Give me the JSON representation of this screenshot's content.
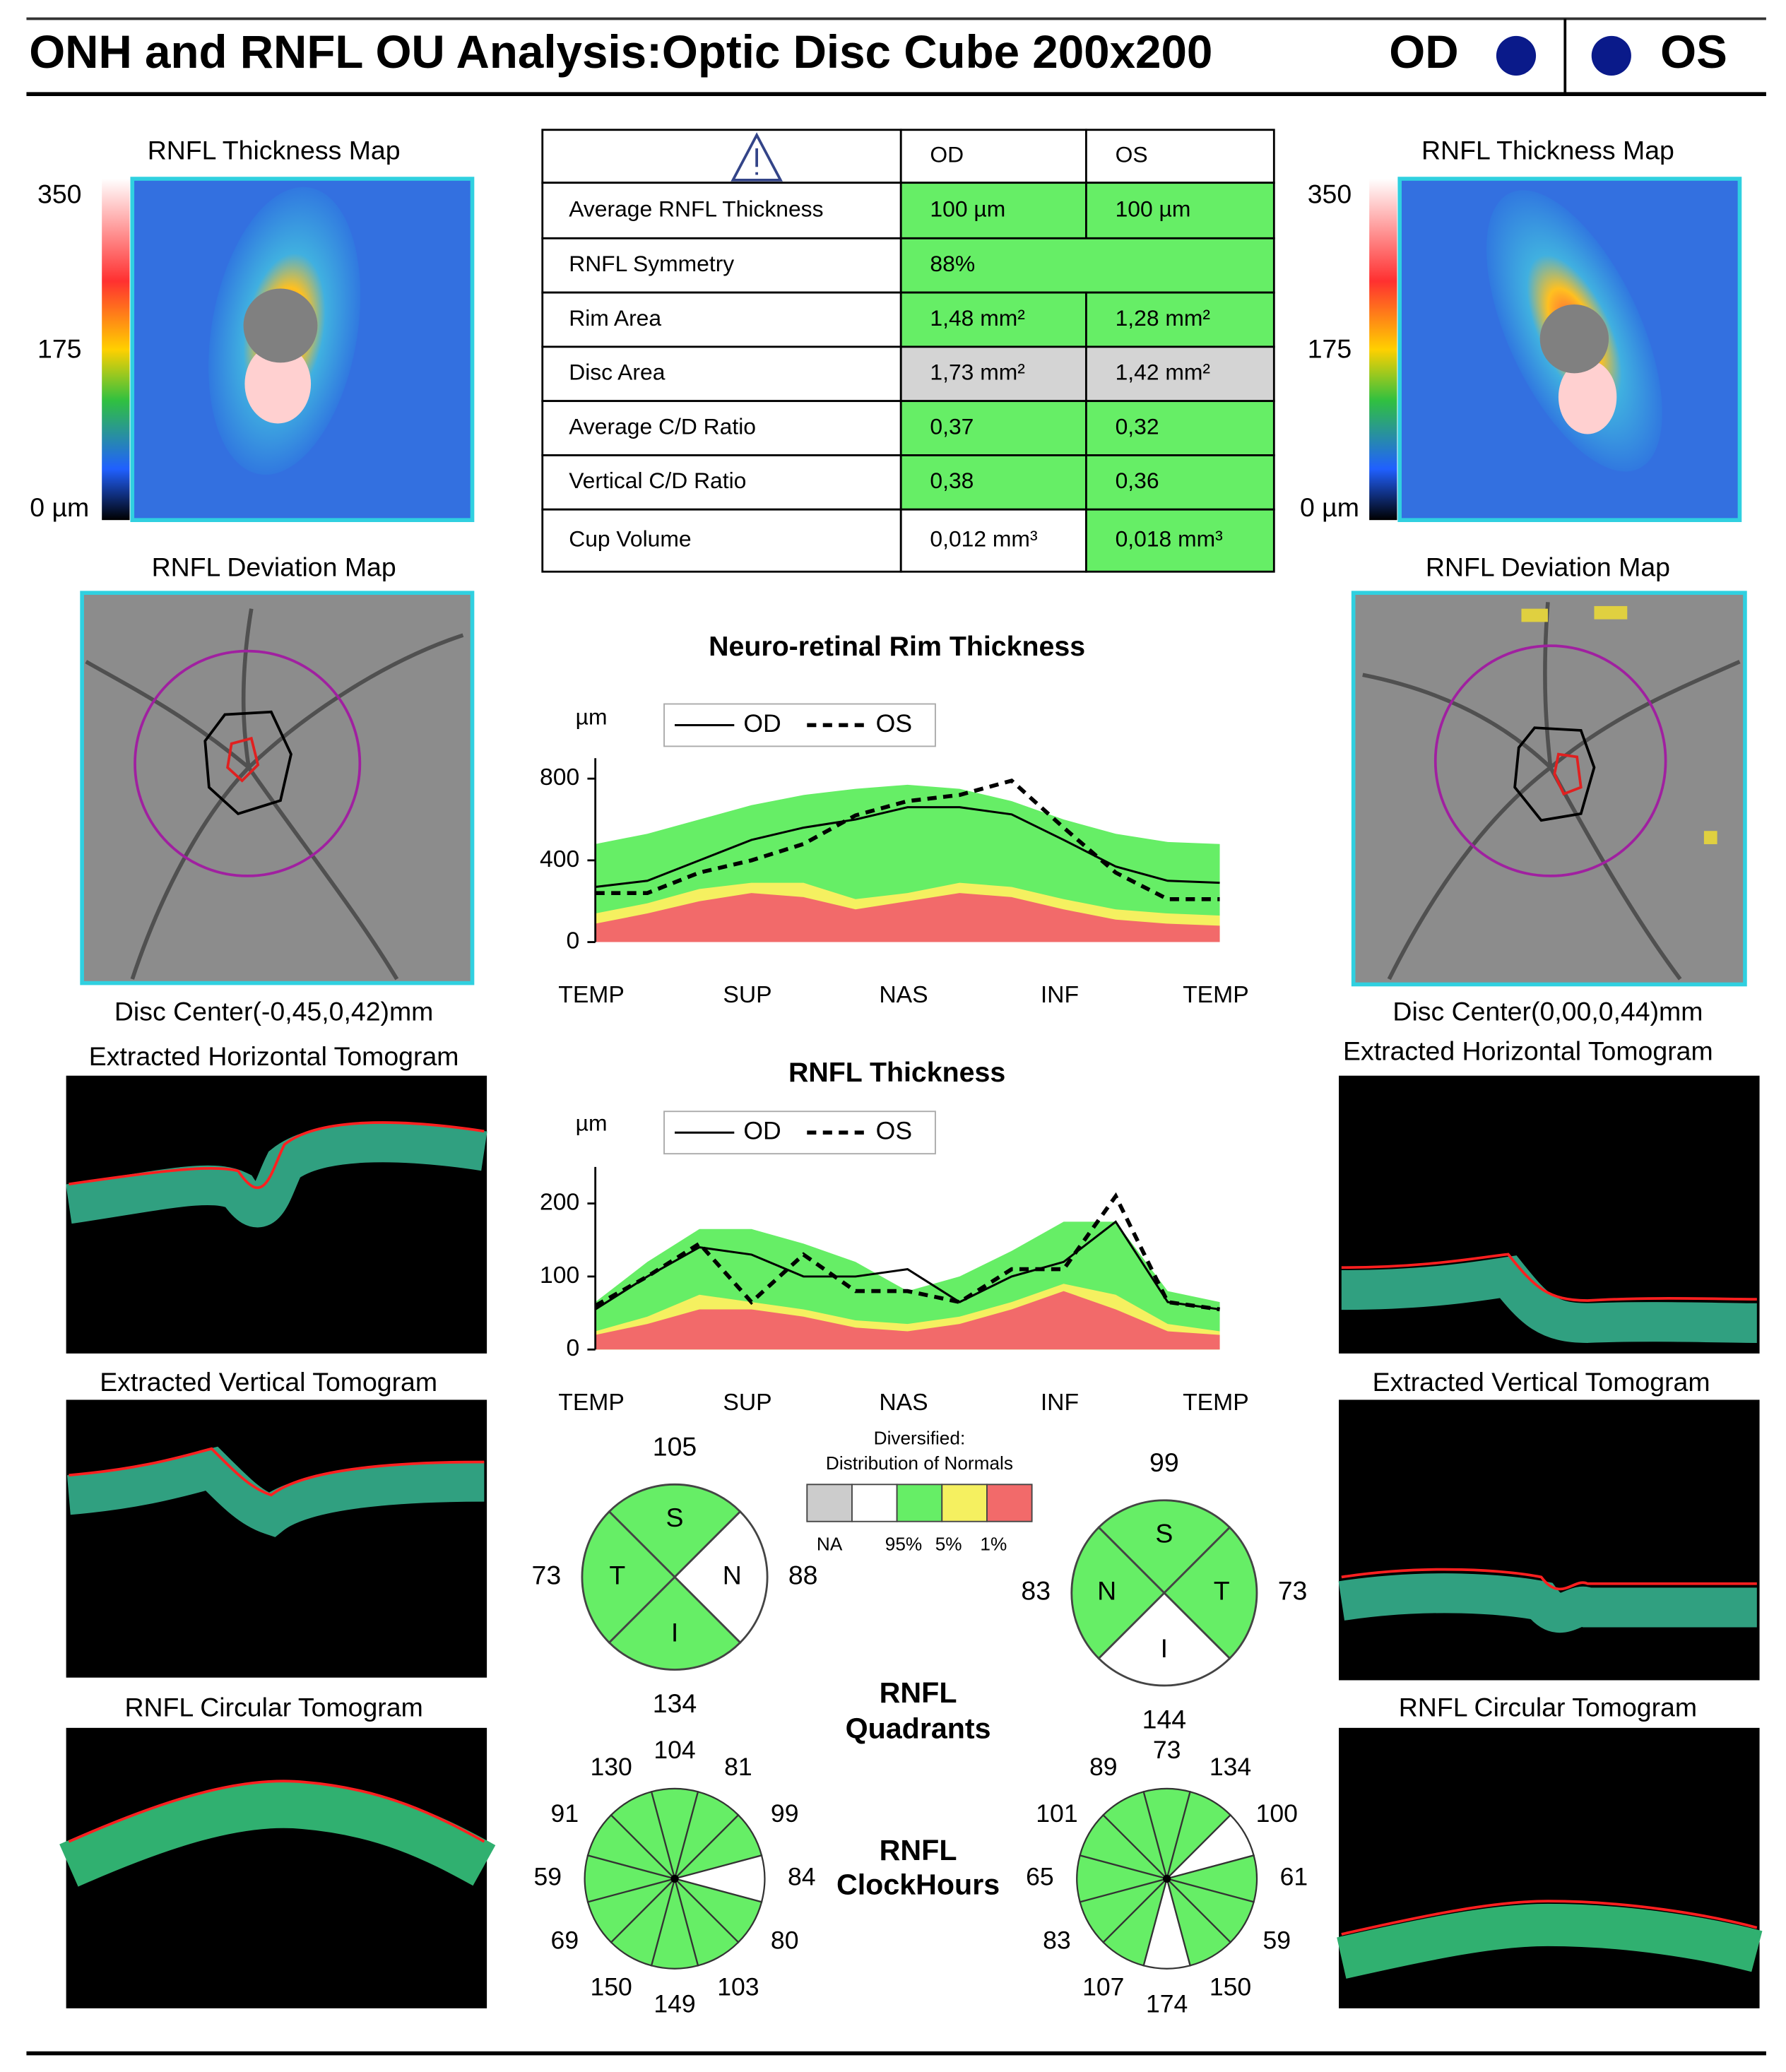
{
  "header": {
    "title": "ONH and RNFL OU Analysis:Optic Disc Cube 200x200",
    "od": "OD",
    "os": "OS"
  },
  "eyes": [
    {
      "thickness_map_title": "RNFL Thickness Map",
      "scale_labels": [
        "350",
        "175",
        "0 µm"
      ],
      "deviation_map_title": "RNFL Deviation Map",
      "disc_center": "Disc Center(-0,45,0,42)mm",
      "horizontal_tomogram_title": "Extracted Horizontal Tomogram",
      "vertical_tomogram_title": "Extracted Vertical Tomogram",
      "circular_tomogram_title": "RNFL Circular Tomogram"
    },
    {
      "thickness_map_title": "RNFL Thickness Map",
      "scale_labels": [
        "350",
        "175",
        "0 µm"
      ],
      "deviation_map_title": "RNFL Deviation Map",
      "disc_center": "Disc Center(0,00,0,44)mm",
      "horizontal_tomogram_title": "Extracted Horizontal Tomogram",
      "vertical_tomogram_title": "Extracted Vertical Tomogram",
      "circular_tomogram_title": "RNFL Circular Tomogram"
    }
  ],
  "table": {
    "header": [
      "OD",
      "OS"
    ],
    "rows": [
      {
        "label": "Average RNFL Thickness",
        "cells": [
          {
            "text": "100 µm",
            "color": "#66ee66"
          },
          {
            "text": "100 µm",
            "color": "#66ee66"
          }
        ]
      },
      {
        "label": "RNFL Symmetry",
        "cells": [
          {
            "text": "88%",
            "color": "#66ee66",
            "span": 2
          }
        ]
      },
      {
        "label": "Rim Area",
        "cells": [
          {
            "text": "1,48 mm²",
            "color": "#66ee66"
          },
          {
            "text": "1,28 mm²",
            "color": "#66ee66"
          }
        ]
      },
      {
        "label": "Disc Area",
        "cells": [
          {
            "text": "1,73 mm²",
            "color": "#d4d4d4"
          },
          {
            "text": "1,42 mm²",
            "color": "#d4d4d4"
          }
        ]
      },
      {
        "label": "Average C/D Ratio",
        "cells": [
          {
            "text": "0,37",
            "color": "#66ee66"
          },
          {
            "text": "0,32",
            "color": "#66ee66"
          }
        ]
      },
      {
        "label": "Vertical C/D Ratio",
        "cells": [
          {
            "text": "0,38",
            "color": "#66ee66"
          },
          {
            "text": "0,36",
            "color": "#66ee66"
          }
        ]
      },
      {
        "label": "Cup Volume",
        "cells": [
          {
            "text": "0,012 mm³",
            "color": "#ffffff"
          },
          {
            "text": "0,018 mm³",
            "color": "#66ee66"
          }
        ]
      }
    ]
  },
  "charts": [
    {
      "type": "line",
      "title": "Neuro-retinal Rim Thickness",
      "y_label": "µm",
      "x": [
        0,
        30,
        60,
        90,
        120,
        150,
        180,
        210,
        240,
        270,
        300,
        330,
        360
      ],
      "xlim": [
        0,
        360
      ],
      "xticks": [
        {
          "value": 0,
          "label": "TEMP"
        },
        {
          "value": 90,
          "label": "SUP"
        },
        {
          "value": 180,
          "label": "NAS"
        },
        {
          "value": 270,
          "label": "INF"
        },
        {
          "value": 360,
          "label": "TEMP"
        }
      ],
      "ylim": [
        0,
        900
      ],
      "yticks": [
        0,
        400,
        800
      ],
      "series": [
        {
          "name": "OD",
          "color": "#000000",
          "dashed": false,
          "values": [
            270,
            300,
            400,
            500,
            560,
            600,
            660,
            660,
            625,
            500,
            370,
            300,
            290
          ]
        },
        {
          "name": "OS",
          "color": "#000000",
          "dashed": true,
          "values": [
            240,
            240,
            340,
            400,
            480,
            620,
            690,
            720,
            790,
            560,
            340,
            210,
            210
          ]
        }
      ],
      "bands": [
        {
          "color": "#66ee66",
          "values": [
            480,
            530,
            600,
            670,
            720,
            750,
            770,
            750,
            690,
            600,
            530,
            490,
            480
          ]
        },
        {
          "color": "#f5f060",
          "values": [
            140,
            190,
            260,
            290,
            290,
            210,
            240,
            290,
            270,
            210,
            160,
            140,
            130
          ]
        },
        {
          "color": "#f26a6a",
          "values": [
            90,
            140,
            200,
            240,
            220,
            160,
            200,
            240,
            220,
            160,
            110,
            90,
            80
          ]
        }
      ]
    },
    {
      "type": "line",
      "title": "RNFL Thickness",
      "y_label": "µm",
      "x": [
        0,
        30,
        60,
        90,
        120,
        150,
        180,
        210,
        240,
        270,
        300,
        330,
        360
      ],
      "xlim": [
        0,
        360
      ],
      "xticks": [
        {
          "value": 0,
          "label": "TEMP"
        },
        {
          "value": 90,
          "label": "SUP"
        },
        {
          "value": 180,
          "label": "NAS"
        },
        {
          "value": 270,
          "label": "INF"
        },
        {
          "value": 360,
          "label": "TEMP"
        }
      ],
      "ylim": [
        0,
        250
      ],
      "yticks": [
        0,
        100,
        200
      ],
      "series": [
        {
          "name": "OD",
          "color": "#000000",
          "dashed": false,
          "values": [
            55,
            100,
            140,
            130,
            100,
            100,
            110,
            65,
            100,
            120,
            175,
            65,
            55
          ]
        },
        {
          "name": "OS",
          "color": "#000000",
          "dashed": true,
          "values": [
            60,
            100,
            145,
            65,
            130,
            80,
            80,
            65,
            110,
            110,
            210,
            65,
            55
          ]
        }
      ],
      "bands": [
        {
          "color": "#66ee66",
          "values": [
            65,
            120,
            165,
            165,
            145,
            120,
            80,
            100,
            135,
            175,
            175,
            80,
            65
          ]
        },
        {
          "color": "#f5f060",
          "values": [
            25,
            45,
            75,
            65,
            55,
            40,
            35,
            45,
            65,
            90,
            75,
            35,
            25
          ]
        },
        {
          "color": "#f26a6a",
          "values": [
            20,
            35,
            55,
            55,
            45,
            30,
            25,
            35,
            55,
            80,
            55,
            25,
            20
          ]
        }
      ]
    }
  ],
  "normals_legend": {
    "title_lines": [
      "Diversified:",
      "Distribution of Normals"
    ],
    "items": [
      {
        "label": "NA",
        "color": "#cccccc"
      },
      {
        "label": null,
        "color": "#ffffff"
      },
      {
        "label": "95%",
        "color": "#66ee66"
      },
      {
        "label": "5%",
        "color": "#f5f060"
      },
      {
        "label": "1%",
        "color": "#f26a6a"
      }
    ]
  },
  "quadrants": {
    "title_lines": [
      "RNFL",
      "Quadrants"
    ],
    "eyes": [
      {
        "sectors": [
          {
            "letter": "S",
            "value": 105,
            "color": "#66ee66"
          },
          {
            "letter": "N",
            "value": 88,
            "color": "#ffffff"
          },
          {
            "letter": "I",
            "value": 134,
            "color": "#66ee66"
          },
          {
            "letter": "T",
            "value": 73,
            "color": "#66ee66"
          }
        ]
      },
      {
        "sectors": [
          {
            "letter": "S",
            "value": 99,
            "color": "#66ee66"
          },
          {
            "letter": "T",
            "value": 73,
            "color": "#66ee66"
          },
          {
            "letter": "I",
            "value": 144,
            "color": "#ffffff"
          },
          {
            "letter": "N",
            "value": 83,
            "color": "#66ee66"
          }
        ]
      }
    ]
  },
  "clock_hours": {
    "title_lines": [
      "RNFL",
      "ClockHours"
    ],
    "eyes": [
      {
        "values": [
          104,
          81,
          99,
          84,
          80,
          103,
          149,
          150,
          69,
          59,
          91,
          130
        ],
        "colors": [
          "#66ee66",
          "#66ee66",
          "#66ee66",
          "#ffffff",
          "#66ee66",
          "#66ee66",
          "#66ee66",
          "#66ee66",
          "#66ee66",
          "#66ee66",
          "#66ee66",
          "#66ee66"
        ]
      },
      {
        "values": [
          73,
          134,
          100,
          61,
          59,
          150,
          174,
          107,
          83,
          65,
          101,
          89
        ],
        "colors": [
          "#66ee66",
          "#66ee66",
          "#ffffff",
          "#66ee66",
          "#66ee66",
          "#66ee66",
          "#ffffff",
          "#66ee66",
          "#66ee66",
          "#66ee66",
          "#66ee66",
          "#66ee66"
        ]
      }
    ]
  }
}
